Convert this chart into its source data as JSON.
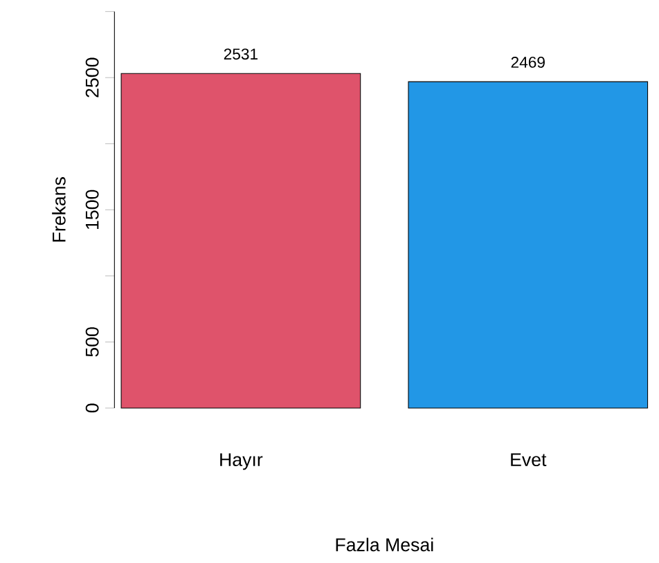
{
  "chart_data": {
    "type": "bar",
    "xlabel": "Fazla Mesai",
    "ylabel": "Frekans",
    "categories": [
      "Hayır",
      "Evet"
    ],
    "values": [
      2531,
      2469
    ],
    "colors": [
      "#df536b",
      "#2297e6"
    ],
    "ylim": [
      0,
      3000
    ],
    "yticks": [
      0,
      500,
      {
        "value": 1000,
        "label": null
      },
      1500,
      {
        "value": 2000,
        "label": null
      },
      2500,
      {
        "value": 3000,
        "label": null
      }
    ],
    "data_labels": true
  }
}
